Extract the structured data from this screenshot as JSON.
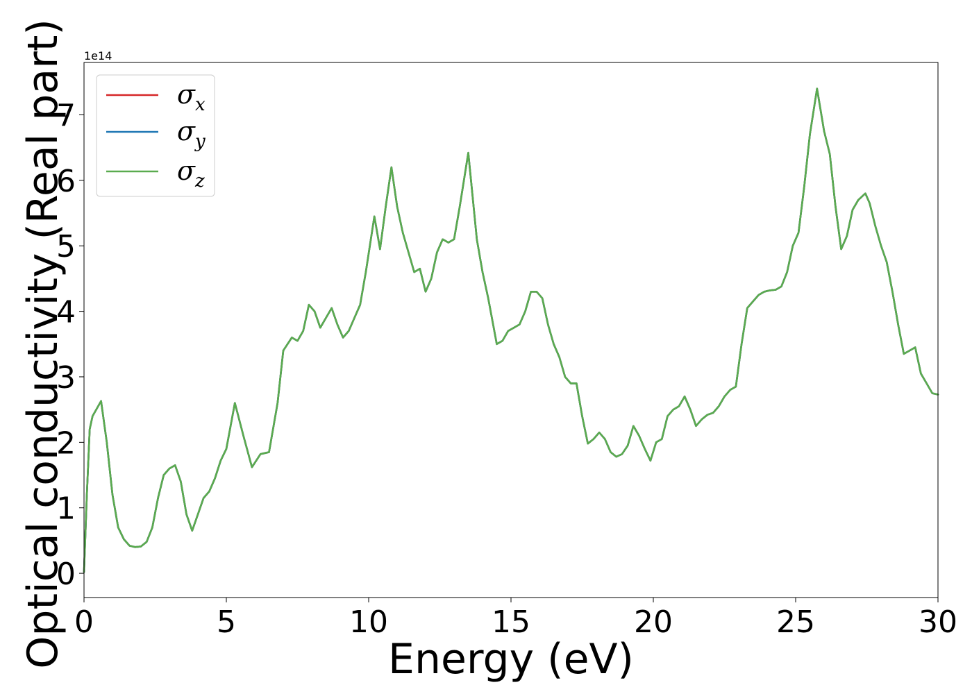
{
  "chart_data": {
    "type": "line",
    "title": "",
    "xlabel": "Energy (eV)",
    "ylabel": "Optical conductivity (Real part)",
    "y_offset_label": "1e14",
    "xlim": [
      0,
      30
    ],
    "ylim": [
      -0.37,
      7.8
    ],
    "xticks": [
      0,
      5,
      10,
      15,
      20,
      25,
      30
    ],
    "yticks": [
      0,
      1,
      2,
      3,
      4,
      5,
      6,
      7
    ],
    "grid": false,
    "legend_position": "top-left",
    "x": [
      0.0,
      0.1,
      0.2,
      0.3,
      0.6,
      0.8,
      1.0,
      1.2,
      1.4,
      1.6,
      1.8,
      2.0,
      2.2,
      2.4,
      2.6,
      2.8,
      3.0,
      3.2,
      3.4,
      3.6,
      3.8,
      4.0,
      4.2,
      4.4,
      4.6,
      4.8,
      5.0,
      5.3,
      5.6,
      5.9,
      6.2,
      6.5,
      6.8,
      7.0,
      7.3,
      7.5,
      7.7,
      7.9,
      8.1,
      8.3,
      8.5,
      8.7,
      8.9,
      9.1,
      9.3,
      9.5,
      9.7,
      9.9,
      10.2,
      10.4,
      10.6,
      10.8,
      11.0,
      11.2,
      11.4,
      11.6,
      11.8,
      12.0,
      12.2,
      12.4,
      12.6,
      12.8,
      13.0,
      13.2,
      13.5,
      13.8,
      14.0,
      14.2,
      14.5,
      14.7,
      14.9,
      15.1,
      15.3,
      15.5,
      15.7,
      15.9,
      16.1,
      16.3,
      16.5,
      16.7,
      16.9,
      17.1,
      17.3,
      17.5,
      17.7,
      17.9,
      18.1,
      18.3,
      18.5,
      18.7,
      18.9,
      19.1,
      19.3,
      19.5,
      19.7,
      19.9,
      20.1,
      20.3,
      20.5,
      20.7,
      20.9,
      21.1,
      21.3,
      21.5,
      21.7,
      21.9,
      22.1,
      22.3,
      22.5,
      22.7,
      22.9,
      23.1,
      23.3,
      23.5,
      23.7,
      23.9,
      24.1,
      24.3,
      24.5,
      24.7,
      24.9,
      25.1,
      25.3,
      25.5,
      25.75,
      26.0,
      26.2,
      26.4,
      26.6,
      26.8,
      27.0,
      27.2,
      27.45,
      27.6,
      27.8,
      28.0,
      28.2,
      28.4,
      28.6,
      28.8,
      29.0,
      29.2,
      29.4,
      29.6,
      29.8,
      30.0
    ],
    "series": [
      {
        "name": "σx",
        "color": "#d62728",
        "values": [
          0.02,
          1.2,
          2.2,
          2.4,
          2.63,
          2.0,
          1.2,
          0.7,
          0.52,
          0.42,
          0.4,
          0.41,
          0.48,
          0.7,
          1.15,
          1.5,
          1.6,
          1.65,
          1.4,
          0.9,
          0.65,
          0.9,
          1.15,
          1.25,
          1.45,
          1.72,
          1.9,
          2.6,
          2.1,
          1.62,
          1.82,
          1.85,
          2.6,
          3.4,
          3.6,
          3.55,
          3.7,
          4.1,
          4.0,
          3.75,
          3.9,
          4.05,
          3.8,
          3.6,
          3.7,
          3.9,
          4.1,
          4.6,
          5.45,
          4.95,
          5.6,
          6.2,
          5.6,
          5.2,
          4.9,
          4.6,
          4.65,
          4.3,
          4.5,
          4.9,
          5.1,
          5.05,
          5.1,
          5.6,
          6.42,
          5.1,
          4.6,
          4.2,
          3.5,
          3.55,
          3.7,
          3.75,
          3.8,
          4.0,
          4.3,
          4.3,
          4.2,
          3.8,
          3.5,
          3.3,
          3.0,
          2.9,
          2.9,
          2.4,
          1.98,
          2.05,
          2.15,
          2.05,
          1.85,
          1.78,
          1.82,
          1.95,
          2.25,
          2.1,
          1.9,
          1.72,
          2.0,
          2.05,
          2.4,
          2.5,
          2.55,
          2.7,
          2.5,
          2.25,
          2.35,
          2.42,
          2.45,
          2.55,
          2.7,
          2.8,
          2.85,
          3.5,
          4.05,
          4.15,
          4.25,
          4.3,
          4.32,
          4.33,
          4.38,
          4.6,
          5.0,
          5.2,
          5.9,
          6.7,
          7.4,
          6.75,
          6.4,
          5.6,
          4.95,
          5.15,
          5.55,
          5.7,
          5.8,
          5.65,
          5.3,
          5.0,
          4.75,
          4.3,
          3.8,
          3.35,
          3.4,
          3.45,
          3.05,
          2.9,
          2.75,
          2.73
        ]
      },
      {
        "name": "σy",
        "color": "#1f77b4",
        "values": [
          0.02,
          1.2,
          2.2,
          2.4,
          2.63,
          2.0,
          1.2,
          0.7,
          0.52,
          0.42,
          0.4,
          0.41,
          0.48,
          0.7,
          1.15,
          1.5,
          1.6,
          1.65,
          1.4,
          0.9,
          0.65,
          0.9,
          1.15,
          1.25,
          1.45,
          1.72,
          1.9,
          2.6,
          2.1,
          1.62,
          1.82,
          1.85,
          2.6,
          3.4,
          3.6,
          3.55,
          3.7,
          4.1,
          4.0,
          3.75,
          3.9,
          4.05,
          3.8,
          3.6,
          3.7,
          3.9,
          4.1,
          4.6,
          5.45,
          4.95,
          5.6,
          6.2,
          5.6,
          5.2,
          4.9,
          4.6,
          4.65,
          4.3,
          4.5,
          4.9,
          5.1,
          5.05,
          5.1,
          5.6,
          6.42,
          5.1,
          4.6,
          4.2,
          3.5,
          3.55,
          3.7,
          3.75,
          3.8,
          4.0,
          4.3,
          4.3,
          4.2,
          3.8,
          3.5,
          3.3,
          3.0,
          2.9,
          2.9,
          2.4,
          1.98,
          2.05,
          2.15,
          2.05,
          1.85,
          1.78,
          1.82,
          1.95,
          2.25,
          2.1,
          1.9,
          1.72,
          2.0,
          2.05,
          2.4,
          2.5,
          2.55,
          2.7,
          2.5,
          2.25,
          2.35,
          2.42,
          2.45,
          2.55,
          2.7,
          2.8,
          2.85,
          3.5,
          4.05,
          4.15,
          4.25,
          4.3,
          4.32,
          4.33,
          4.38,
          4.6,
          5.0,
          5.2,
          5.9,
          6.7,
          7.4,
          6.75,
          6.4,
          5.6,
          4.95,
          5.15,
          5.55,
          5.7,
          5.8,
          5.65,
          5.3,
          5.0,
          4.75,
          4.3,
          3.8,
          3.35,
          3.4,
          3.45,
          3.05,
          2.9,
          2.75,
          2.73
        ]
      },
      {
        "name": "σz",
        "color": "#5aab4f",
        "values": [
          0.02,
          1.2,
          2.2,
          2.4,
          2.63,
          2.0,
          1.2,
          0.7,
          0.52,
          0.42,
          0.4,
          0.41,
          0.48,
          0.7,
          1.15,
          1.5,
          1.6,
          1.65,
          1.4,
          0.9,
          0.65,
          0.9,
          1.15,
          1.25,
          1.45,
          1.72,
          1.9,
          2.6,
          2.1,
          1.62,
          1.82,
          1.85,
          2.6,
          3.4,
          3.6,
          3.55,
          3.7,
          4.1,
          4.0,
          3.75,
          3.9,
          4.05,
          3.8,
          3.6,
          3.7,
          3.9,
          4.1,
          4.6,
          5.45,
          4.95,
          5.6,
          6.2,
          5.6,
          5.2,
          4.9,
          4.6,
          4.65,
          4.3,
          4.5,
          4.9,
          5.1,
          5.05,
          5.1,
          5.6,
          6.42,
          5.1,
          4.6,
          4.2,
          3.5,
          3.55,
          3.7,
          3.75,
          3.8,
          4.0,
          4.3,
          4.3,
          4.2,
          3.8,
          3.5,
          3.3,
          3.0,
          2.9,
          2.9,
          2.4,
          1.98,
          2.05,
          2.15,
          2.05,
          1.85,
          1.78,
          1.82,
          1.95,
          2.25,
          2.1,
          1.9,
          1.72,
          2.0,
          2.05,
          2.4,
          2.5,
          2.55,
          2.7,
          2.5,
          2.25,
          2.35,
          2.42,
          2.45,
          2.55,
          2.7,
          2.8,
          2.85,
          3.5,
          4.05,
          4.15,
          4.25,
          4.3,
          4.32,
          4.33,
          4.38,
          4.6,
          5.0,
          5.2,
          5.9,
          6.7,
          7.4,
          6.75,
          6.4,
          5.6,
          4.95,
          5.15,
          5.55,
          5.7,
          5.8,
          5.65,
          5.3,
          5.0,
          4.75,
          4.3,
          3.8,
          3.35,
          3.4,
          3.45,
          3.05,
          2.9,
          2.75,
          2.73
        ]
      }
    ]
  }
}
